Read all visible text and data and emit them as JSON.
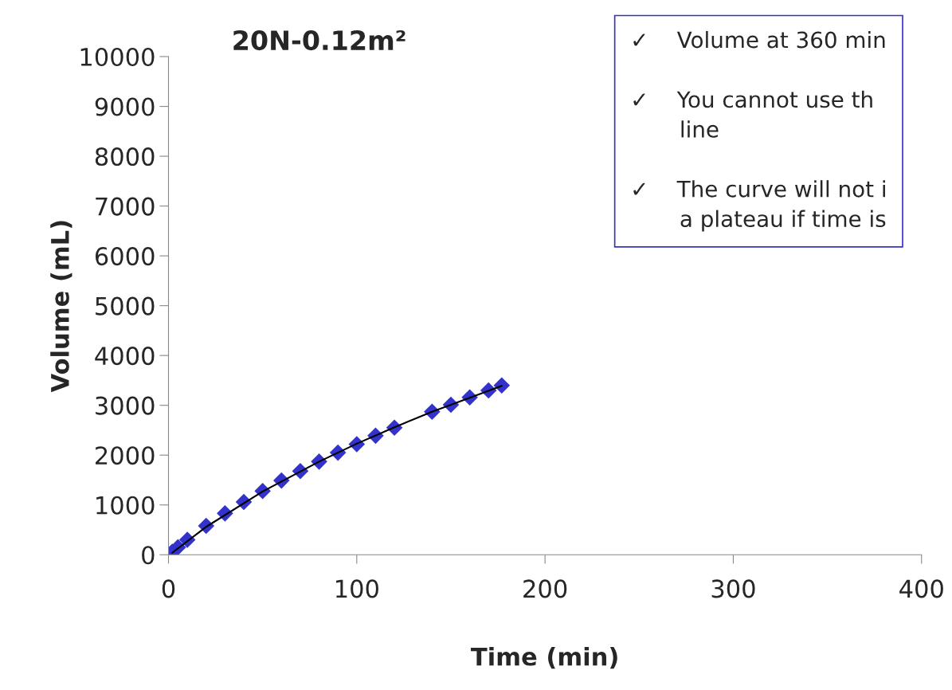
{
  "chart_data": {
    "type": "scatter",
    "title": "20N-0.12m²",
    "xlabel": "Time (min)",
    "ylabel": "Volume (mL)",
    "xlim": [
      0,
      400
    ],
    "xticks": [
      0,
      100,
      200,
      300,
      400
    ],
    "ylim": [
      0,
      10000
    ],
    "yticks": [
      0,
      1000,
      2000,
      3000,
      4000,
      5000,
      6000,
      7000,
      8000,
      9000,
      10000
    ],
    "grid": false,
    "legend": false,
    "marker": "diamond",
    "series": [
      {
        "color": "#3333cc",
        "x": [
          2,
          5,
          10,
          20,
          30,
          40,
          50,
          60,
          70,
          80,
          90,
          100,
          110,
          120,
          140,
          150,
          160,
          170,
          177
        ],
        "values": [
          60,
          150,
          300,
          580,
          830,
          1060,
          1280,
          1490,
          1680,
          1870,
          2050,
          2220,
          2390,
          2550,
          2870,
          3010,
          3160,
          3300,
          3400
        ]
      },
      {
        "type": "line",
        "color": "#000000",
        "line_style": "solid",
        "marker": "none",
        "x": [
          2,
          20,
          50,
          80,
          100,
          120,
          140,
          160,
          177
        ],
        "values": [
          40,
          560,
          1270,
          1870,
          2230,
          2560,
          2870,
          3150,
          3390
        ]
      }
    ],
    "annotations": [
      "✓    Volume at 360 min",
      "✓    You cannot use th\n       line",
      "✓    The curve will not i\n       a plateau if time is"
    ]
  }
}
